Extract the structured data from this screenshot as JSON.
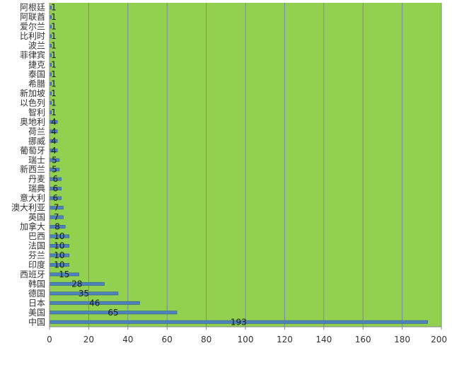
{
  "chart_data": {
    "type": "bar",
    "orientation": "horizontal",
    "title": "",
    "xlabel": "",
    "ylabel": "",
    "xlim": [
      0,
      200
    ],
    "xticks": [
      0,
      20,
      40,
      60,
      80,
      100,
      120,
      140,
      160,
      180,
      200
    ],
    "grid": "vertical",
    "legend": "none",
    "colors": {
      "plot_background": "#92d050",
      "bar_fill": "#4f81bd",
      "bar_edge": "#2c5d8f",
      "grid": "#7a8a99",
      "axis": "#888888"
    },
    "categories": [
      "中国",
      "美国",
      "日本",
      "德国",
      "韩国",
      "西班牙",
      "印度",
      "芬兰",
      "法国",
      "巴西",
      "加拿大",
      "英国",
      "澳大利亚",
      "意大利",
      "瑞典",
      "丹麦",
      "新西兰",
      "瑞士",
      "葡萄牙",
      "挪威",
      "荷兰",
      "奥地利",
      "智利",
      "以色列",
      "新加坡",
      "希腊",
      "泰国",
      "捷克",
      "菲律宾",
      "波兰",
      "比利时",
      "爱尔兰",
      "阿联酋",
      "阿根廷"
    ],
    "values": [
      193,
      65,
      46,
      35,
      28,
      15,
      10,
      10,
      10,
      10,
      8,
      7,
      7,
      6,
      6,
      6,
      5,
      5,
      4,
      4,
      4,
      4,
      1,
      1,
      1,
      1,
      1,
      1,
      1,
      1,
      1,
      1,
      1,
      1
    ]
  }
}
